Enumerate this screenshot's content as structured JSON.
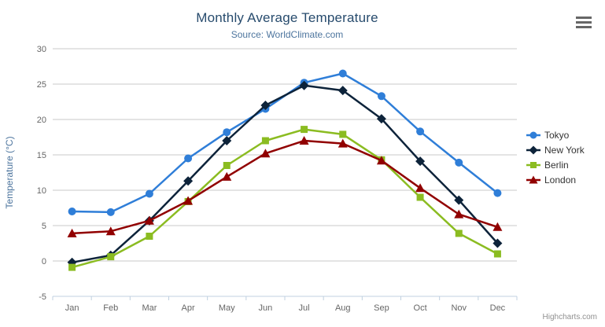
{
  "chart": {
    "title": "Monthly Average Temperature",
    "subtitle": "Source: WorldClimate.com",
    "credits": "Highcharts.com",
    "menu_icon": "hamburger-icon"
  },
  "chart_data": {
    "type": "line",
    "title": "Monthly Average Temperature",
    "subtitle": "Source: WorldClimate.com",
    "categories": [
      "Jan",
      "Feb",
      "Mar",
      "Apr",
      "May",
      "Jun",
      "Jul",
      "Aug",
      "Sep",
      "Oct",
      "Nov",
      "Dec"
    ],
    "xlabel": "",
    "ylabel": "Temperature (°C)",
    "ylim": [
      -5,
      30
    ],
    "y_ticks": [
      -5,
      0,
      5,
      10,
      15,
      20,
      25,
      30
    ],
    "grid": true,
    "legend_position": "right",
    "series": [
      {
        "name": "Tokyo",
        "color": "#2f7ed8",
        "marker": "circle",
        "values": [
          7.0,
          6.9,
          9.5,
          14.5,
          18.2,
          21.5,
          25.2,
          26.5,
          23.3,
          18.3,
          13.9,
          9.6
        ]
      },
      {
        "name": "New York",
        "color": "#0d233a",
        "marker": "diamond",
        "values": [
          -0.2,
          0.8,
          5.7,
          11.3,
          17.0,
          22.0,
          24.8,
          24.1,
          20.1,
          14.1,
          8.6,
          2.5
        ]
      },
      {
        "name": "Berlin",
        "color": "#8bbc21",
        "marker": "square",
        "values": [
          -0.9,
          0.6,
          3.5,
          8.4,
          13.5,
          17.0,
          18.6,
          17.9,
          14.3,
          9.0,
          3.9,
          1.0
        ]
      },
      {
        "name": "London",
        "color": "#910000",
        "marker": "triangle",
        "values": [
          3.9,
          4.2,
          5.7,
          8.5,
          11.9,
          15.2,
          17.0,
          16.6,
          14.2,
          10.3,
          6.6,
          4.8
        ]
      }
    ],
    "styles": {
      "grid_line_color": "#c8c8c8",
      "axis_line_color": "#c0d0e0",
      "axis_label_color": "#666666",
      "axis_title_color": "#4d759e",
      "title_color": "#274b6d",
      "subtitle_color": "#4d759e",
      "legend_text_color": "#333333",
      "credits_color": "#909090"
    }
  }
}
